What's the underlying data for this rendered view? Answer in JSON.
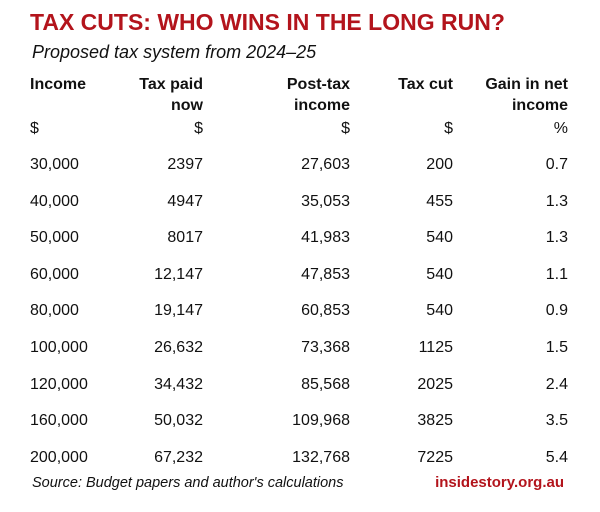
{
  "header": {
    "title": "TAX CUTS: WHO WINS IN THE LONG RUN?",
    "subtitle": "Proposed tax system from 2024–25"
  },
  "table": {
    "columns": [
      {
        "header": [
          "Income"
        ],
        "unit": "$"
      },
      {
        "header": [
          "Tax paid",
          "now"
        ],
        "unit": "$"
      },
      {
        "header": [
          "Post-tax",
          "income"
        ],
        "unit": "$"
      },
      {
        "header": [
          "Tax cut"
        ],
        "unit": "$"
      },
      {
        "header": [
          "Gain in net",
          "income"
        ],
        "unit": "%"
      }
    ],
    "rows": [
      [
        "30,000",
        "2397",
        "27,603",
        "200",
        "0.7"
      ],
      [
        "40,000",
        "4947",
        "35,053",
        "455",
        "1.3"
      ],
      [
        "50,000",
        "8017",
        "41,983",
        "540",
        "1.3"
      ],
      [
        "60,000",
        "12,147",
        "47,853",
        "540",
        "1.1"
      ],
      [
        "80,000",
        "19,147",
        "60,853",
        "540",
        "0.9"
      ],
      [
        "100,000",
        "26,632",
        "73,368",
        "1125",
        "1.5"
      ],
      [
        "120,000",
        "34,432",
        "85,568",
        "2025",
        "2.4"
      ],
      [
        "160,000",
        "50,032",
        "109,968",
        "3825",
        "3.5"
      ],
      [
        "200,000",
        "67,232",
        "132,768",
        "7225",
        "5.4"
      ]
    ]
  },
  "footer": {
    "source": "Source: Budget papers and author's calculations",
    "site": "insidestory.org.au"
  }
}
